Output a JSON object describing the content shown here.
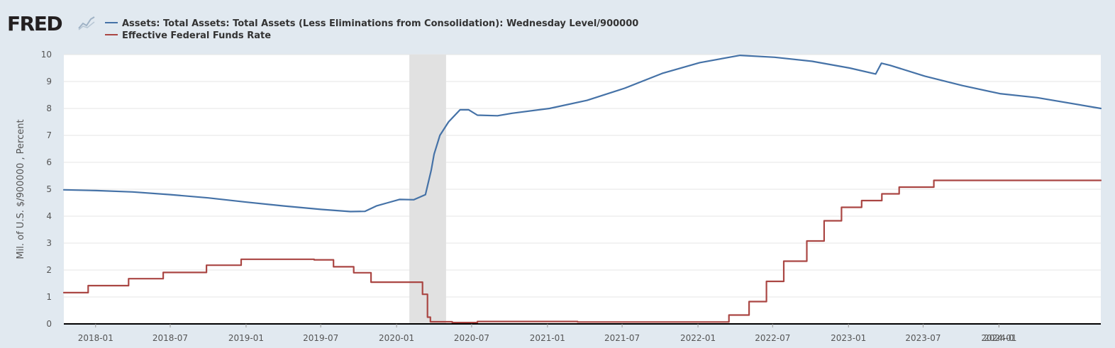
{
  "logo": {
    "text": "FRED"
  },
  "colors": {
    "background": "#e1e9f0",
    "plot_background": "#ffffff",
    "gridline": "#e6e6e6",
    "recession": "#e1e1e1",
    "axis": "#000000"
  },
  "chart_data": {
    "type": "line",
    "ylabel": "Mil. of U.S. $/900000 , Percent",
    "ylim": [
      0,
      10
    ],
    "yticks": [
      "0",
      "1",
      "2",
      "3",
      "4",
      "5",
      "6",
      "7",
      "8",
      "9",
      "10"
    ],
    "xlim": [
      "2017-10-16",
      "2024-09-04"
    ],
    "xticks": [
      "2018-01",
      "2018-07",
      "2019-01",
      "2019-07",
      "2020-01",
      "2020-07",
      "2021-01",
      "2021-07",
      "2022-01",
      "2022-07",
      "2023-01",
      "2023-07",
      "2024-01",
      "2024-0"
    ],
    "grid": true,
    "legend_position": "top-left",
    "recession_shading": [
      [
        "2020-02-01",
        "2020-04-30"
      ]
    ],
    "series": [
      {
        "name": "Assets: Total Assets: Total Assets (Less Eliminations from Consolidation): Wednesday Level/900000",
        "color": "#4572a7",
        "style": "solid",
        "points": [
          [
            "2017-10-16",
            4.98
          ],
          [
            "2018-01-03",
            4.95
          ],
          [
            "2018-04-01",
            4.9
          ],
          [
            "2018-07-01",
            4.8
          ],
          [
            "2018-10-01",
            4.68
          ],
          [
            "2019-01-02",
            4.52
          ],
          [
            "2019-04-03",
            4.38
          ],
          [
            "2019-07-03",
            4.25
          ],
          [
            "2019-09-11",
            4.17
          ],
          [
            "2019-10-16",
            4.18
          ],
          [
            "2019-11-13",
            4.38
          ],
          [
            "2019-12-11",
            4.5
          ],
          [
            "2020-01-08",
            4.62
          ],
          [
            "2020-02-12",
            4.61
          ],
          [
            "2020-03-11",
            4.8
          ],
          [
            "2020-03-25",
            5.7
          ],
          [
            "2020-04-01",
            6.3
          ],
          [
            "2020-04-15",
            7.0
          ],
          [
            "2020-05-06",
            7.5
          ],
          [
            "2020-06-03",
            7.95
          ],
          [
            "2020-06-24",
            7.95
          ],
          [
            "2020-07-15",
            7.75
          ],
          [
            "2020-09-02",
            7.73
          ],
          [
            "2020-10-07",
            7.82
          ],
          [
            "2021-01-06",
            8.0
          ],
          [
            "2021-04-07",
            8.3
          ],
          [
            "2021-07-07",
            8.75
          ],
          [
            "2021-10-06",
            9.3
          ],
          [
            "2022-01-05",
            9.7
          ],
          [
            "2022-04-13",
            9.97
          ],
          [
            "2022-07-06",
            9.9
          ],
          [
            "2022-10-05",
            9.75
          ],
          [
            "2023-01-04",
            9.5
          ],
          [
            "2023-03-08",
            9.28
          ],
          [
            "2023-03-22",
            9.68
          ],
          [
            "2023-04-12",
            9.6
          ],
          [
            "2023-07-05",
            9.2
          ],
          [
            "2023-10-04",
            8.85
          ],
          [
            "2024-01-03",
            8.55
          ],
          [
            "2024-04-03",
            8.4
          ],
          [
            "2024-09-04",
            8.0
          ]
        ]
      },
      {
        "name": "Effective Federal Funds Rate",
        "color": "#aa4643",
        "style": "step",
        "points": [
          [
            "2017-10-16",
            1.16
          ],
          [
            "2017-12-14",
            1.42
          ],
          [
            "2018-03-22",
            1.68
          ],
          [
            "2018-06-14",
            1.91
          ],
          [
            "2018-09-27",
            2.18
          ],
          [
            "2018-12-20",
            2.4
          ],
          [
            "2019-06-15",
            2.38
          ],
          [
            "2019-08-01",
            2.12
          ],
          [
            "2019-09-19",
            1.9
          ],
          [
            "2019-10-31",
            1.55
          ],
          [
            "2020-03-04",
            1.1
          ],
          [
            "2020-03-16",
            0.25
          ],
          [
            "2020-03-23",
            0.08
          ],
          [
            "2020-05-15",
            0.05
          ],
          [
            "2020-07-15",
            0.09
          ],
          [
            "2021-03-15",
            0.07
          ],
          [
            "2022-03-17",
            0.33
          ],
          [
            "2022-05-05",
            0.83
          ],
          [
            "2022-06-16",
            1.58
          ],
          [
            "2022-07-28",
            2.33
          ],
          [
            "2022-09-22",
            3.08
          ],
          [
            "2022-11-03",
            3.83
          ],
          [
            "2022-12-15",
            4.33
          ],
          [
            "2023-02-02",
            4.58
          ],
          [
            "2023-03-23",
            4.83
          ],
          [
            "2023-05-04",
            5.08
          ],
          [
            "2023-07-27",
            5.33
          ],
          [
            "2024-09-04",
            5.33
          ]
        ]
      }
    ]
  }
}
